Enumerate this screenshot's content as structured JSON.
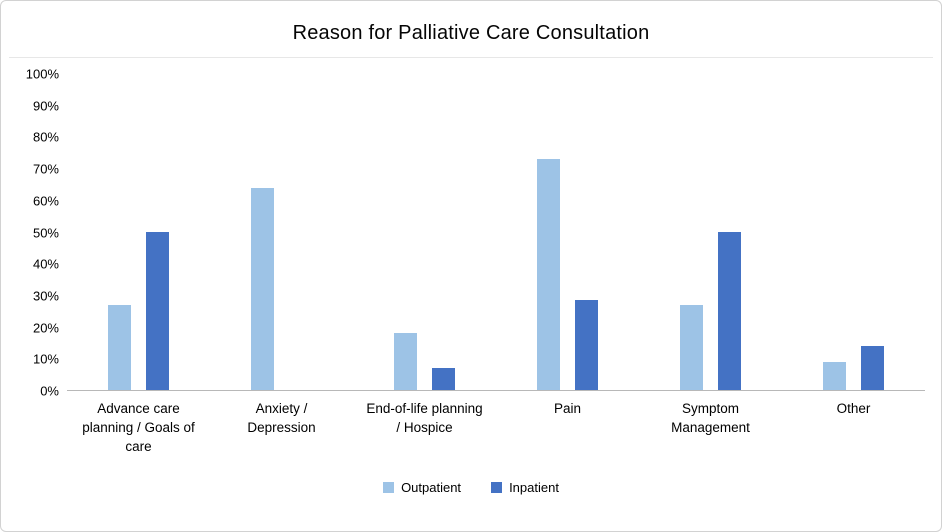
{
  "chart_data": {
    "type": "bar",
    "title": "Reason for Palliative Care Consultation",
    "categories": [
      "Advance care planning / Goals of care",
      "Anxiety / Depression",
      "End-of-life planning / Hospice",
      "Pain",
      "Symptom Management",
      "Other"
    ],
    "series": [
      {
        "name": "Outpatient",
        "color": "#9DC3E6",
        "values": [
          27,
          64,
          18,
          73,
          27,
          9
        ]
      },
      {
        "name": "Inpatient",
        "color": "#4472C4",
        "values": [
          50,
          0,
          7,
          28.5,
          50,
          14
        ]
      }
    ],
    "ylim": [
      0,
      100
    ],
    "ytick_step": 10,
    "ytick_suffix": "%",
    "grid": false,
    "legend_position": "bottom",
    "legend_labels": [
      "Outpatient",
      "Inpatient"
    ]
  }
}
